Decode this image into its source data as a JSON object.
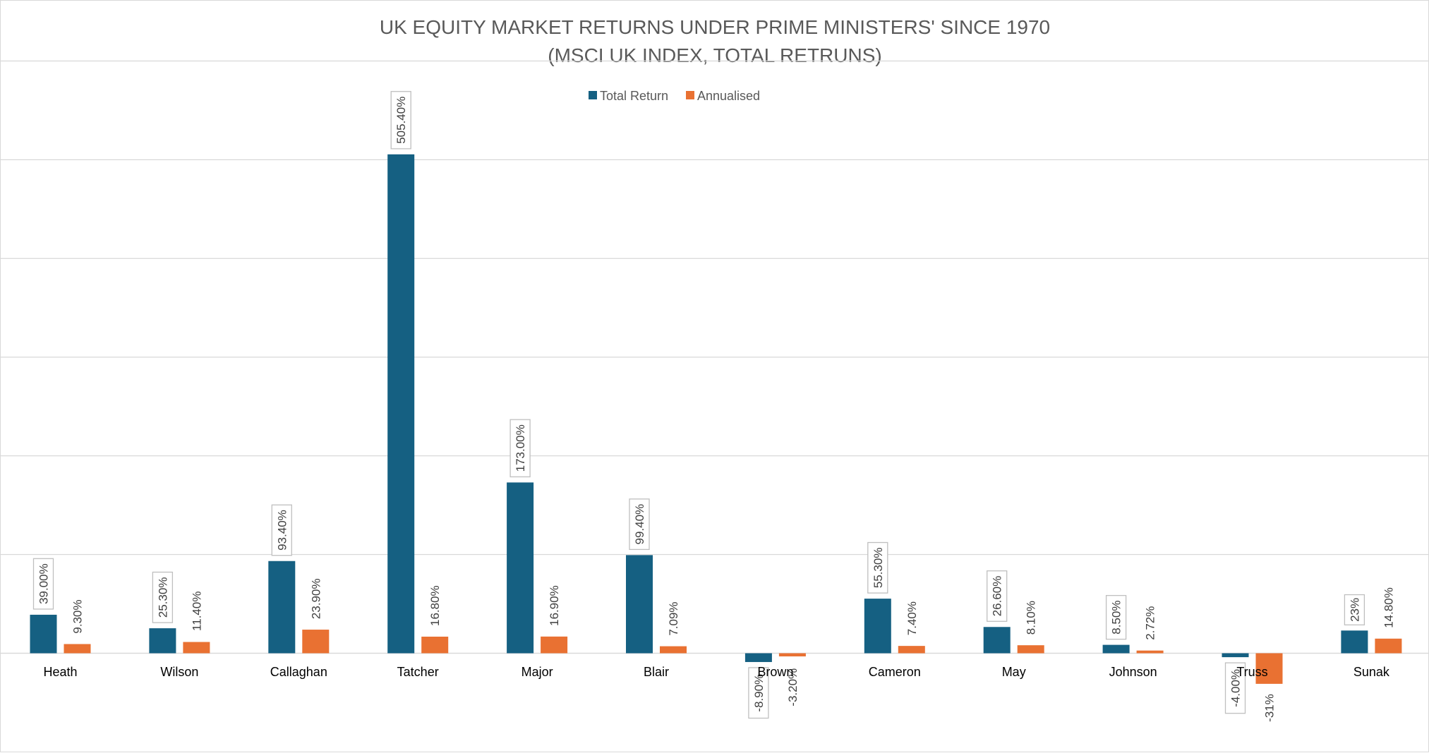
{
  "chart_data": {
    "type": "bar",
    "title": "UK EQUITY MARKET RETURNS UNDER PRIME MINISTERS' SINCE 1970",
    "subtitle": "(MSCI UK INDEX, TOTAL RETRUNS)",
    "xlabel": "",
    "ylabel": "",
    "ylim": [
      -100,
      600
    ],
    "gridlines": [
      -100,
      0,
      100,
      200,
      300,
      400,
      500,
      600
    ],
    "grid": true,
    "y_tick_labels_shown": false,
    "legend_position": "top-center",
    "categories": [
      "Heath",
      "Wilson",
      "Callaghan",
      "Tatcher",
      "Major",
      "Blair",
      "Brown",
      "Cameron",
      "May",
      "Johnson",
      "Truss",
      "Sunak"
    ],
    "series": [
      {
        "name": "Total Return",
        "color": "#156082",
        "values": [
          39.0,
          25.3,
          93.4,
          505.4,
          173.0,
          99.4,
          -8.9,
          55.3,
          26.6,
          8.5,
          -4.0,
          23.0
        ],
        "labels": [
          "39.00%",
          "25.30%",
          "93.40%",
          "505.40%",
          "173.00%",
          "99.40%",
          "-8.90%",
          "55.30%",
          "26.60%",
          "8.50%",
          "-4.00%",
          "23%"
        ]
      },
      {
        "name": "Annualised",
        "color": "#E97132",
        "values": [
          9.3,
          11.4,
          23.9,
          16.8,
          16.9,
          7.09,
          -3.2,
          7.4,
          8.1,
          2.72,
          -31.0,
          14.8
        ],
        "labels": [
          "9.30%",
          "11.40%",
          "23.90%",
          "16.80%",
          "16.90%",
          "7.09%",
          "-3.20%",
          "7.40%",
          "8.10%",
          "2.72%",
          "-31%",
          "14.80%"
        ]
      }
    ]
  }
}
